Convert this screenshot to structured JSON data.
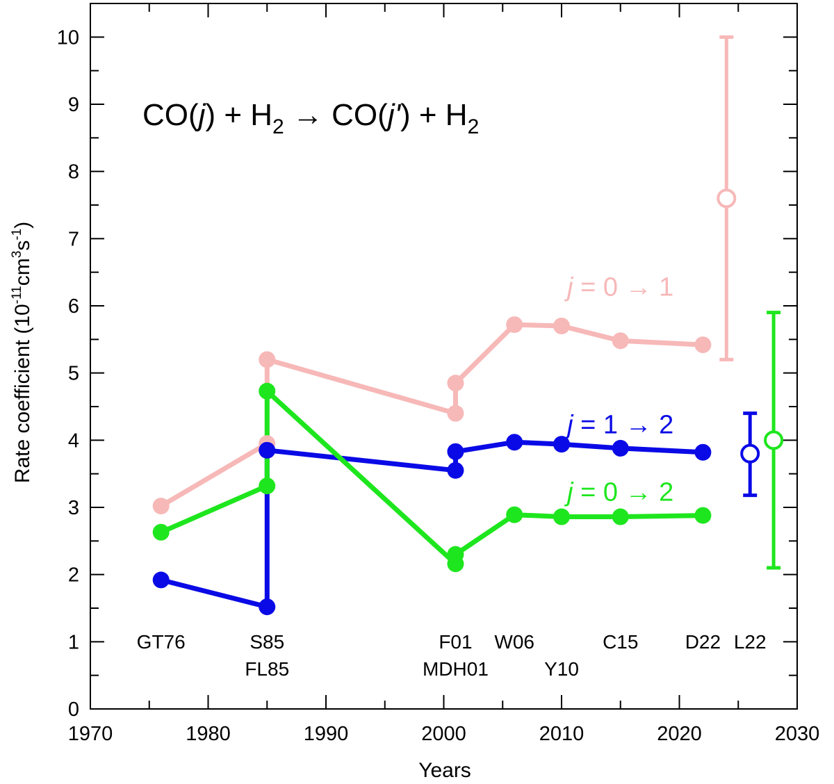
{
  "chart_data": {
    "type": "scatter",
    "title_parts": {
      "a": "CO(",
      "b": "j",
      "c": ") + H",
      "d": "2",
      "e": " → CO(",
      "f": "j'",
      "g": ") + H",
      "h": "2"
    },
    "xlabel": "Years",
    "ylabel_parts": {
      "a": "Rate coefficient (10",
      "b": "-11",
      "c": "cm",
      "d": "3",
      "e": "s",
      "f": "-1",
      "g": ")"
    },
    "xlim": [
      1970,
      2030
    ],
    "ylim": [
      0,
      10.5
    ],
    "xticks": [
      "1970",
      "1980",
      "1990",
      "2000",
      "2010",
      "2020",
      "2030"
    ],
    "yticks": [
      "0",
      "1",
      "2",
      "3",
      "4",
      "5",
      "6",
      "7",
      "8",
      "9",
      "10"
    ],
    "colors": {
      "pink": "#f7b8b8",
      "blue": "#0a0ae6",
      "green": "#1ee61e",
      "axis": "#000000"
    },
    "series": [
      {
        "name": "j = 0 → 1",
        "color": "#f7b8b8",
        "label": {
          "j": "j",
          "rest": " = 0 → 1",
          "x": 2015,
          "y": 6.15
        },
        "points": [
          [
            1976,
            3.02
          ],
          [
            1985,
            3.95
          ],
          [
            1985,
            5.2
          ],
          [
            2001,
            4.4
          ],
          [
            2001,
            4.85
          ],
          [
            2006,
            5.72
          ],
          [
            2010,
            5.7
          ],
          [
            2015,
            5.48
          ],
          [
            2022,
            5.42
          ]
        ],
        "path": [
          [
            1976,
            3.02
          ],
          [
            1985,
            3.95
          ],
          [
            1985,
            5.2
          ],
          [
            2001,
            4.4
          ],
          [
            2001,
            4.85
          ],
          [
            2006,
            5.72
          ],
          [
            2010,
            5.7
          ],
          [
            2015,
            5.48
          ],
          [
            2022,
            5.42
          ]
        ],
        "errorbar": {
          "x": 2024,
          "y": 7.6,
          "low": 5.2,
          "high": 10.0
        }
      },
      {
        "name": "j = 1 → 2",
        "color": "#0a0ae6",
        "label": {
          "j": "j",
          "rest": " = 1 → 2",
          "x": 2015,
          "y": 4.1
        },
        "points": [
          [
            1976,
            1.92
          ],
          [
            1985,
            1.52
          ],
          [
            1985,
            3.85
          ],
          [
            2001,
            3.55
          ],
          [
            2001,
            3.83
          ],
          [
            2006,
            3.97
          ],
          [
            2010,
            3.94
          ],
          [
            2015,
            3.88
          ],
          [
            2022,
            3.82
          ]
        ],
        "path": [
          [
            1976,
            1.92
          ],
          [
            1985,
            1.52
          ],
          [
            1985,
            3.85
          ],
          [
            2001,
            3.55
          ],
          [
            2001,
            3.83
          ],
          [
            2006,
            3.97
          ],
          [
            2010,
            3.94
          ],
          [
            2015,
            3.88
          ],
          [
            2022,
            3.82
          ]
        ],
        "errorbar": {
          "x": 2026,
          "y": 3.8,
          "low": 3.18,
          "high": 4.4
        }
      },
      {
        "name": "j = 0 → 2",
        "color": "#1ee61e",
        "label": {
          "j": "j",
          "rest": " = 0 → 2",
          "x": 2015,
          "y": 3.1
        },
        "points": [
          [
            1976,
            2.63
          ],
          [
            1985,
            3.32
          ],
          [
            1985,
            4.73
          ],
          [
            2001,
            2.3
          ],
          [
            2001,
            2.16
          ],
          [
            2006,
            2.89
          ],
          [
            2010,
            2.86
          ],
          [
            2015,
            2.86
          ],
          [
            2022,
            2.88
          ]
        ],
        "path": [
          [
            1976,
            2.63
          ],
          [
            1985,
            3.32
          ],
          [
            1985,
            4.73
          ],
          [
            2001,
            2.16
          ],
          [
            2001,
            2.3
          ],
          [
            2006,
            2.89
          ],
          [
            2010,
            2.86
          ],
          [
            2015,
            2.86
          ],
          [
            2022,
            2.88
          ]
        ],
        "errorbar": {
          "x": 2028,
          "y": 4.0,
          "low": 2.1,
          "high": 5.9
        }
      }
    ],
    "reference_labels": [
      {
        "text": "GT76",
        "x": 1976,
        "row": 1
      },
      {
        "text": "S85",
        "x": 1985,
        "row": 1
      },
      {
        "text": "FL85",
        "x": 1985,
        "row": 2
      },
      {
        "text": "F01",
        "x": 2001,
        "row": 1
      },
      {
        "text": "MDH01",
        "x": 2001,
        "row": 2
      },
      {
        "text": "W06",
        "x": 2006,
        "row": 1
      },
      {
        "text": "Y10",
        "x": 2010,
        "row": 2
      },
      {
        "text": "C15",
        "x": 2015,
        "row": 1
      },
      {
        "text": "D22",
        "x": 2022,
        "row": 1
      },
      {
        "text": "L22",
        "x": 2026,
        "row": 1
      }
    ]
  }
}
